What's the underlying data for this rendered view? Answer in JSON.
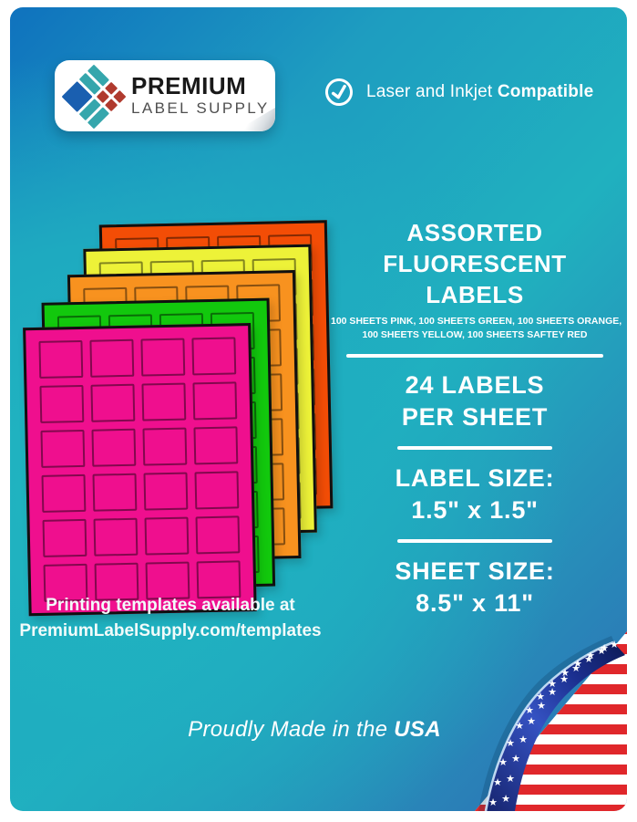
{
  "brand": {
    "line1": "PREMIUM",
    "line2": "LABEL SUPPLY"
  },
  "compatibility": {
    "prefix": "Laser and Inkjet ",
    "bold": "Compatible"
  },
  "headline": {
    "line1": "ASSORTED",
    "line2": "FLUORESCENT LABELS"
  },
  "subheadline": {
    "line1": "100 SHEETS PINK, 100 SHEETS GREEN, 100 SHEETS ORANGE,",
    "line2": "100 SHEETS YELLOW, 100 SHEETS SAFTEY RED"
  },
  "specs": [
    {
      "line1": "24 LABELS",
      "line2": "PER SHEET"
    },
    {
      "line1": "LABEL SIZE:",
      "line2": "1.5\" x 1.5\""
    },
    {
      "line1": "SHEET SIZE:",
      "line2": "8.5\" x 11\""
    }
  ],
  "sheets": {
    "columns": 4,
    "rows": 6,
    "labels_per_sheet": 24,
    "colors": [
      {
        "name": "safety-red",
        "hex": "#F34D06"
      },
      {
        "name": "yellow",
        "hex": "#EDF238"
      },
      {
        "name": "orange",
        "hex": "#F8921F"
      },
      {
        "name": "green",
        "hex": "#12C80D"
      },
      {
        "name": "pink",
        "hex": "#EF0F8E"
      }
    ]
  },
  "templates_note": {
    "line1": "Printing templates available at",
    "line2": "PremiumLabelSupply.com/templates"
  },
  "footer": {
    "prefix": "Proudly Made in the ",
    "bold": "USA"
  },
  "colors": {
    "background_teal": "#1FAFBF",
    "background_blue_top_left": "#1173BD",
    "background_blue_bottom_right": "#2E6CB4",
    "text": "#FFFFFF",
    "logo_blue": "#1A5FB0",
    "logo_teal": "#35A6AC",
    "logo_red": "#B03A2E",
    "flag_red": "#E0272B",
    "flag_navy": "#16246E"
  },
  "icons": {
    "check": "check-circle-icon",
    "flag": "usa-flag-page-curl"
  }
}
